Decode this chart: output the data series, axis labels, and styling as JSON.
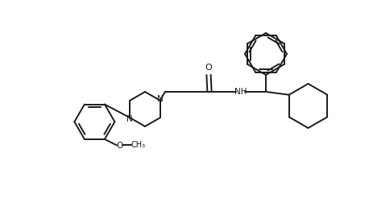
{
  "bg_color": "#ffffff",
  "line_color": "#1a1a1a",
  "lw": 1.4,
  "dbg": 0.035,
  "figsize": [
    4.58,
    2.72
  ],
  "dpi": 100,
  "xlim": [
    0,
    9.16
  ],
  "ylim": [
    0,
    5.44
  ]
}
